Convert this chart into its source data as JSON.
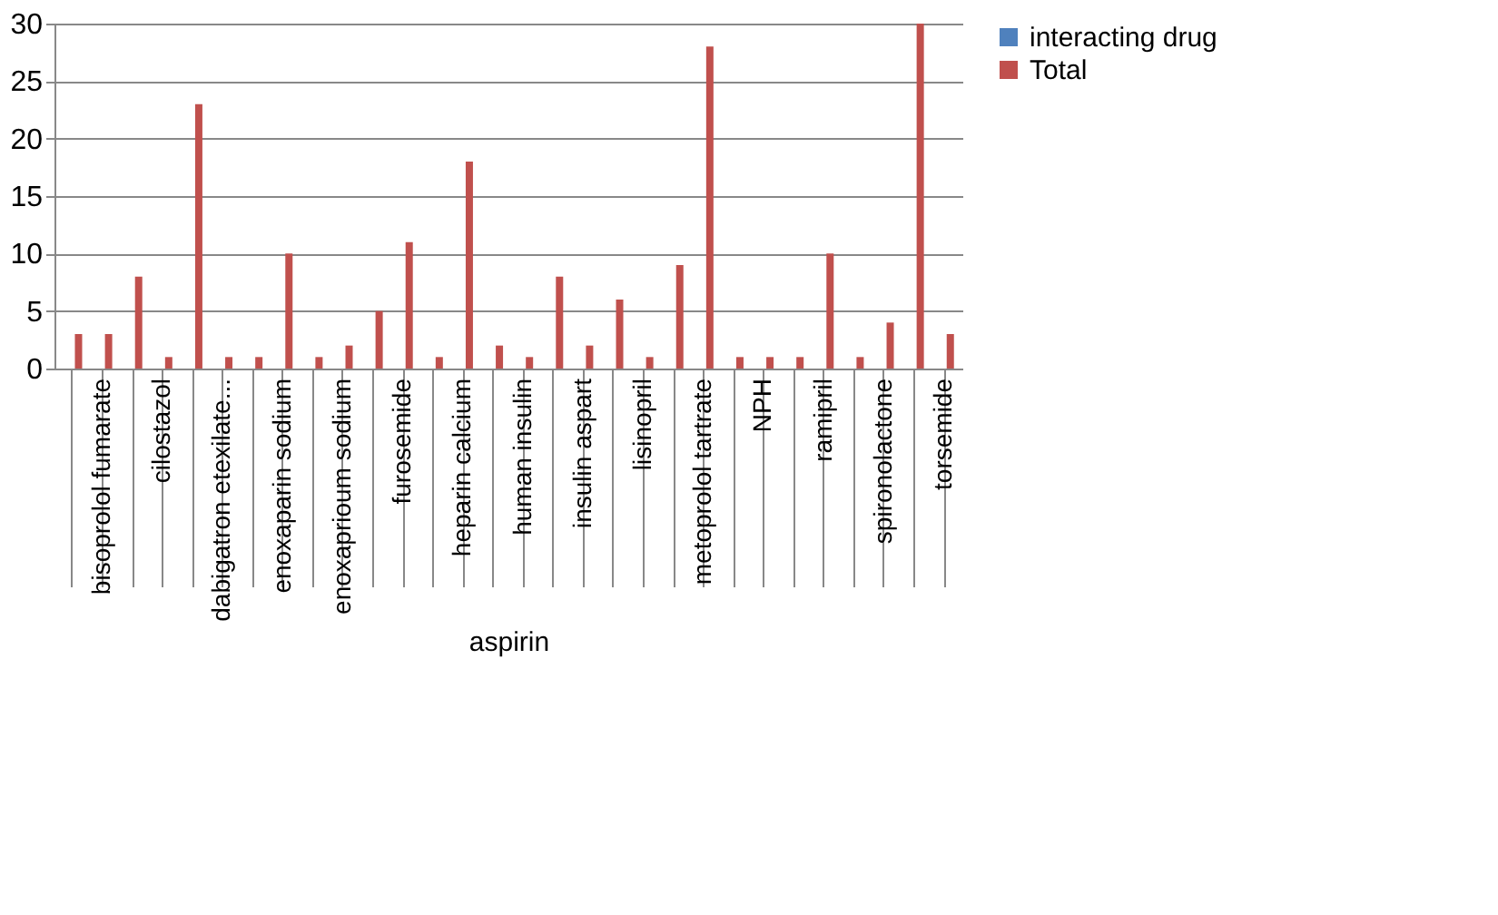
{
  "chart_data": {
    "type": "bar",
    "xlabel": "aspirin",
    "categories": [
      null,
      "bisoprolol fumarate",
      null,
      "cilostazol",
      null,
      "dabigatron etexilate...",
      null,
      "enoxaparin sodium",
      null,
      "enoxaprioum sodium",
      null,
      "furosemide",
      null,
      "heparin calcium",
      null,
      "human insulin",
      null,
      "insulin aspart",
      null,
      "lisinopril",
      null,
      "metoprolol tartrate",
      null,
      "NPH",
      null,
      "ramipril",
      null,
      "spironolactone",
      null,
      "torsemide"
    ],
    "series": [
      {
        "name": "interacting drug",
        "color": "#4f81bd",
        "values": [
          null,
          null,
          null,
          null,
          null,
          null,
          null,
          null,
          null,
          null,
          null,
          null,
          null,
          null,
          null,
          null,
          null,
          null,
          null,
          null,
          null,
          null,
          null,
          null,
          null,
          null,
          null,
          null,
          null,
          null
        ]
      },
      {
        "name": "Total",
        "color": "#c0504d",
        "values": [
          3,
          3,
          8,
          1,
          23,
          1,
          1,
          10,
          1,
          2,
          5,
          11,
          1,
          18,
          2,
          1,
          8,
          2,
          6,
          1,
          9,
          28,
          1,
          1,
          1,
          10,
          1,
          4,
          30,
          3
        ]
      }
    ],
    "ylim": [
      0,
      30
    ],
    "yticks": [
      0,
      5,
      10,
      15,
      20,
      25,
      30
    ],
    "grid": "y",
    "legend": "right"
  }
}
